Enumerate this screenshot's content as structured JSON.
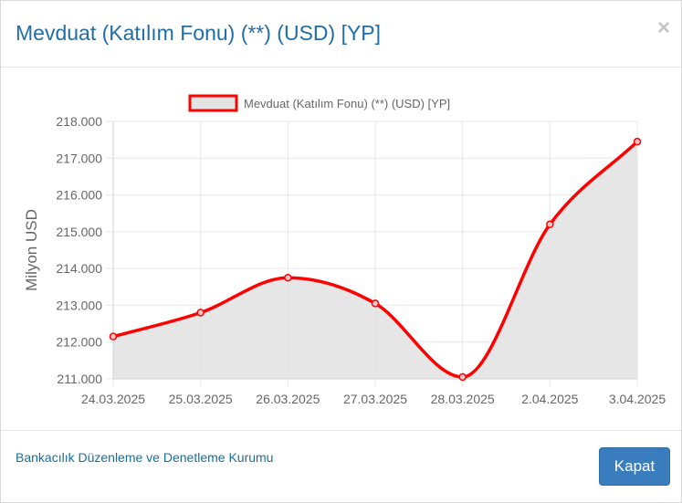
{
  "modal": {
    "title": "Mevduat (Katılım Fonu) (**) (USD) [YP]",
    "close_symbol": "×",
    "footer_link": "Bankacılık Düzenleme ve Denetleme Kurumu",
    "close_button_label": "Kapat"
  },
  "colors": {
    "title": "#1f6ea9",
    "line": "#ff0000",
    "fill": "#e3e3e3",
    "button": "#3a7dbf"
  },
  "chart_data": {
    "type": "area",
    "categories": [
      "24.03.2025",
      "25.03.2025",
      "26.03.2025",
      "27.03.2025",
      "28.03.2025",
      "2.04.2025",
      "3.04.2025"
    ],
    "series": [
      {
        "name": "Mevduat (Katılım Fonu) (**) (USD) [YP]",
        "values": [
          212.15,
          212.8,
          213.75,
          213.05,
          211.05,
          215.2,
          217.45
        ]
      }
    ],
    "ylabel": "Milyon USD",
    "xlabel": "",
    "ylim": [
      211,
      218
    ],
    "yticks": [
      "211.000",
      "212.000",
      "213.000",
      "214.000",
      "215.000",
      "216.000",
      "217.000",
      "218.000"
    ],
    "legend_position": "top",
    "grid": true
  }
}
